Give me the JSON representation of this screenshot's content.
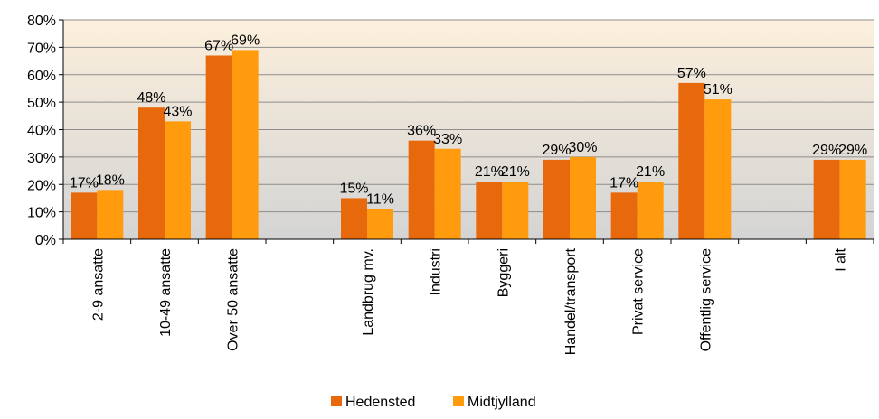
{
  "chart_data": {
    "type": "bar",
    "title": "",
    "xlabel": "",
    "ylabel": "",
    "ylim": [
      0,
      80
    ],
    "yticks": [
      "0%",
      "10%",
      "20%",
      "30%",
      "40%",
      "50%",
      "60%",
      "70%",
      "80%"
    ],
    "grid": true,
    "legend_position": "bottom",
    "categories": [
      "2-9 ansatte",
      "10-49 ansatte",
      "Over 50 ansatte",
      "",
      "Landbrug mv.",
      "Industri",
      "Byggeri",
      "Handel/transport",
      "Privat service",
      "Offentlig service",
      "",
      "I alt"
    ],
    "series": [
      {
        "name": "Hedensted",
        "color": "#e8680c",
        "values": [
          17,
          48,
          67,
          null,
          15,
          36,
          21,
          29,
          17,
          57,
          null,
          29
        ],
        "labels": [
          "17%",
          "48%",
          "67%",
          "",
          "15%",
          "36%",
          "21%",
          "29%",
          "17%",
          "57%",
          "",
          "29%"
        ]
      },
      {
        "name": "Midtjylland",
        "color": "#ff9b0d",
        "values": [
          18,
          43,
          69,
          null,
          11,
          33,
          21,
          30,
          21,
          51,
          null,
          29
        ],
        "labels": [
          "18%",
          "43%",
          "69%",
          "",
          "11%",
          "33%",
          "21%",
          "30%",
          "21%",
          "51%",
          "",
          "29%"
        ]
      }
    ],
    "plot_background": {
      "top": "#fcefdc",
      "bottom": "#d4d4d4"
    }
  }
}
